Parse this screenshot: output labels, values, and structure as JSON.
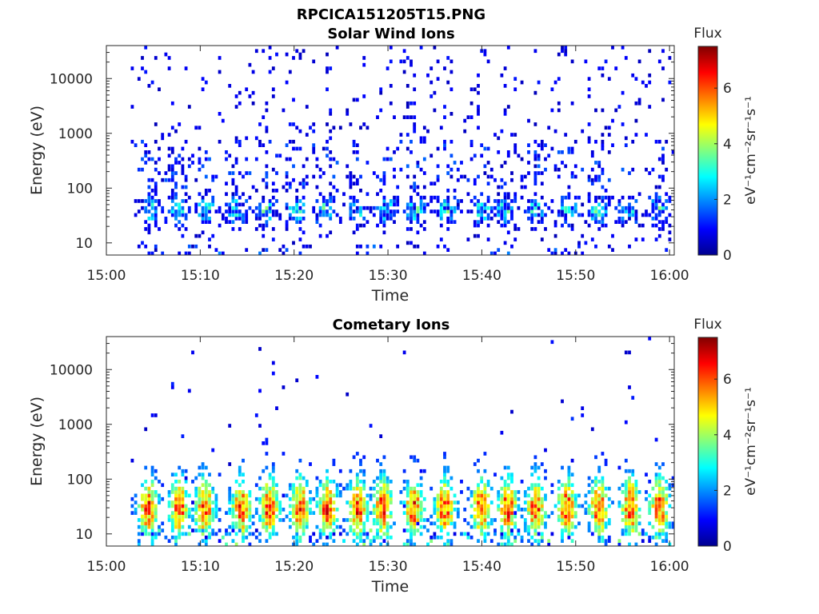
{
  "figure": {
    "super_title": "RPCICA151205T15.PNG"
  },
  "chart_data": [
    {
      "type": "heatmap",
      "title": "Solar Wind Ions",
      "xlabel": "Time",
      "ylabel": "Energy (eV)",
      "x_ticks": [
        "15:00",
        "15:10",
        "15:20",
        "15:30",
        "15:40",
        "15:50",
        "16:00"
      ],
      "xlim_minutes": [
        0,
        60.5
      ],
      "y_ticks": [
        "10",
        "100",
        "1000",
        "10000"
      ],
      "y_tick_values": [
        10,
        100,
        1000,
        10000
      ],
      "ylim": [
        6,
        40000
      ],
      "y_scale": "log",
      "data_start_minute": 2.6,
      "colorbar": {
        "label": "Flux",
        "unit_label": "eV⁻¹cm⁻²sr⁻¹s⁻¹",
        "ticks": [
          "0",
          "2",
          "4",
          "6"
        ],
        "range": [
          0,
          7.5
        ],
        "colormap": "jet"
      },
      "bursts_minutes": [
        4.5,
        7.5,
        10.5,
        13.8,
        16.9,
        20.2,
        23.0,
        26.4,
        29.7,
        32.7,
        36.2,
        39.9,
        42.4,
        45.7,
        49.0,
        52.2,
        55.5,
        58.6
      ],
      "peak_energy_eV": 40,
      "peak_flux": 3.5
    },
    {
      "type": "heatmap",
      "title": "Cometary Ions",
      "xlabel": "Time",
      "ylabel": "Energy (eV)",
      "x_ticks": [
        "15:00",
        "15:10",
        "15:20",
        "15:30",
        "15:40",
        "15:50",
        "16:00"
      ],
      "xlim_minutes": [
        0,
        60.5
      ],
      "y_ticks": [
        "10",
        "100",
        "1000",
        "10000"
      ],
      "y_tick_values": [
        10,
        100,
        1000,
        10000
      ],
      "ylim": [
        6,
        40000
      ],
      "y_scale": "log",
      "data_start_minute": 2.6,
      "colorbar": {
        "label": "Flux",
        "unit_label": "eV⁻¹cm⁻²sr⁻¹s⁻¹",
        "ticks": [
          "0",
          "2",
          "4",
          "6"
        ],
        "range": [
          0,
          7.5
        ],
        "colormap": "jet"
      },
      "bursts_minutes": [
        4.3,
        7.6,
        10.3,
        14.2,
        17.2,
        20.5,
        23.4,
        26.6,
        29.3,
        32.6,
        35.9,
        39.8,
        42.6,
        45.6,
        48.9,
        52.3,
        55.7,
        58.8
      ],
      "peak_energy_eV": 30,
      "peak_flux": 6.3
    }
  ]
}
